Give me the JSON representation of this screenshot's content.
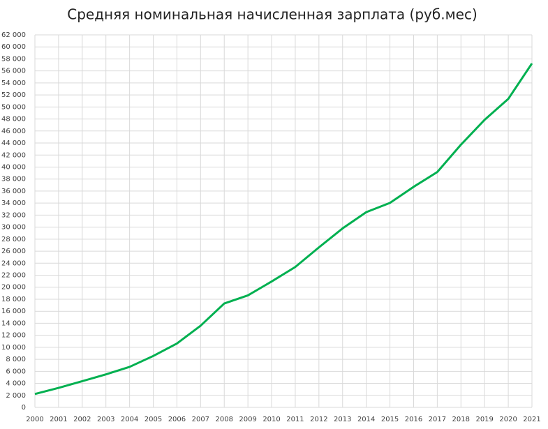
{
  "chart_data": {
    "type": "line",
    "title": "Средняя номинальная начисленная зарплата (руб.мес)",
    "x": [
      2000,
      2001,
      2002,
      2003,
      2004,
      2005,
      2006,
      2007,
      2008,
      2009,
      2010,
      2011,
      2012,
      2013,
      2014,
      2015,
      2016,
      2017,
      2018,
      2019,
      2020,
      2021
    ],
    "series": [
      {
        "color": "#00b050",
        "values": [
          2223,
          3240,
          4360,
          5499,
          6740,
          8555,
          10634,
          13593,
          17290,
          18638,
          20952,
          23369,
          26629,
          29792,
          32495,
          34030,
          36709,
          39167,
          43724,
          47867,
          51344,
          57244
        ]
      }
    ],
    "xlim": [
      2000,
      2021
    ],
    "xticks": [
      2000,
      2001,
      2002,
      2003,
      2004,
      2005,
      2006,
      2007,
      2008,
      2009,
      2010,
      2011,
      2012,
      2013,
      2014,
      2015,
      2016,
      2017,
      2018,
      2019,
      2020,
      2021
    ],
    "ylim": [
      0,
      62000
    ],
    "yticks": [
      0,
      {
        "value": 2000,
        "label": "2 000"
      },
      {
        "value": 4000,
        "label": "4 000"
      },
      {
        "value": 6000,
        "label": "6 000"
      },
      {
        "value": 8000,
        "label": "8 000"
      },
      {
        "value": 10000,
        "label": "10 000"
      },
      {
        "value": 12000,
        "label": "12 000"
      },
      {
        "value": 14000,
        "label": "14 000"
      },
      {
        "value": 16000,
        "label": "16 000"
      },
      {
        "value": 18000,
        "label": "18 000"
      },
      {
        "value": 20000,
        "label": "20 000"
      },
      {
        "value": 22000,
        "label": "22 000"
      },
      {
        "value": 24000,
        "label": "24 000"
      },
      {
        "value": 26000,
        "label": "26 000"
      },
      {
        "value": 28000,
        "label": "28 000"
      },
      {
        "value": 30000,
        "label": "30 000"
      },
      {
        "value": 32000,
        "label": "32 000"
      },
      {
        "value": 34000,
        "label": "34 000"
      },
      {
        "value": 36000,
        "label": "36 000"
      },
      {
        "value": 38000,
        "label": "38 000"
      },
      {
        "value": 40000,
        "label": "40 000"
      },
      {
        "value": 42000,
        "label": "42 000"
      },
      {
        "value": 44000,
        "label": "44 000"
      },
      {
        "value": 46000,
        "label": "46 000"
      },
      {
        "value": 48000,
        "label": "48 000"
      },
      {
        "value": 50000,
        "label": "50 000"
      },
      {
        "value": 52000,
        "label": "52 000"
      },
      {
        "value": 54000,
        "label": "54 000"
      },
      {
        "value": 56000,
        "label": "56 000"
      },
      {
        "value": 58000,
        "label": "58 000"
      },
      {
        "value": 60000,
        "label": "60 000"
      },
      {
        "value": 62000,
        "label": "62 000"
      }
    ],
    "grid": true
  }
}
